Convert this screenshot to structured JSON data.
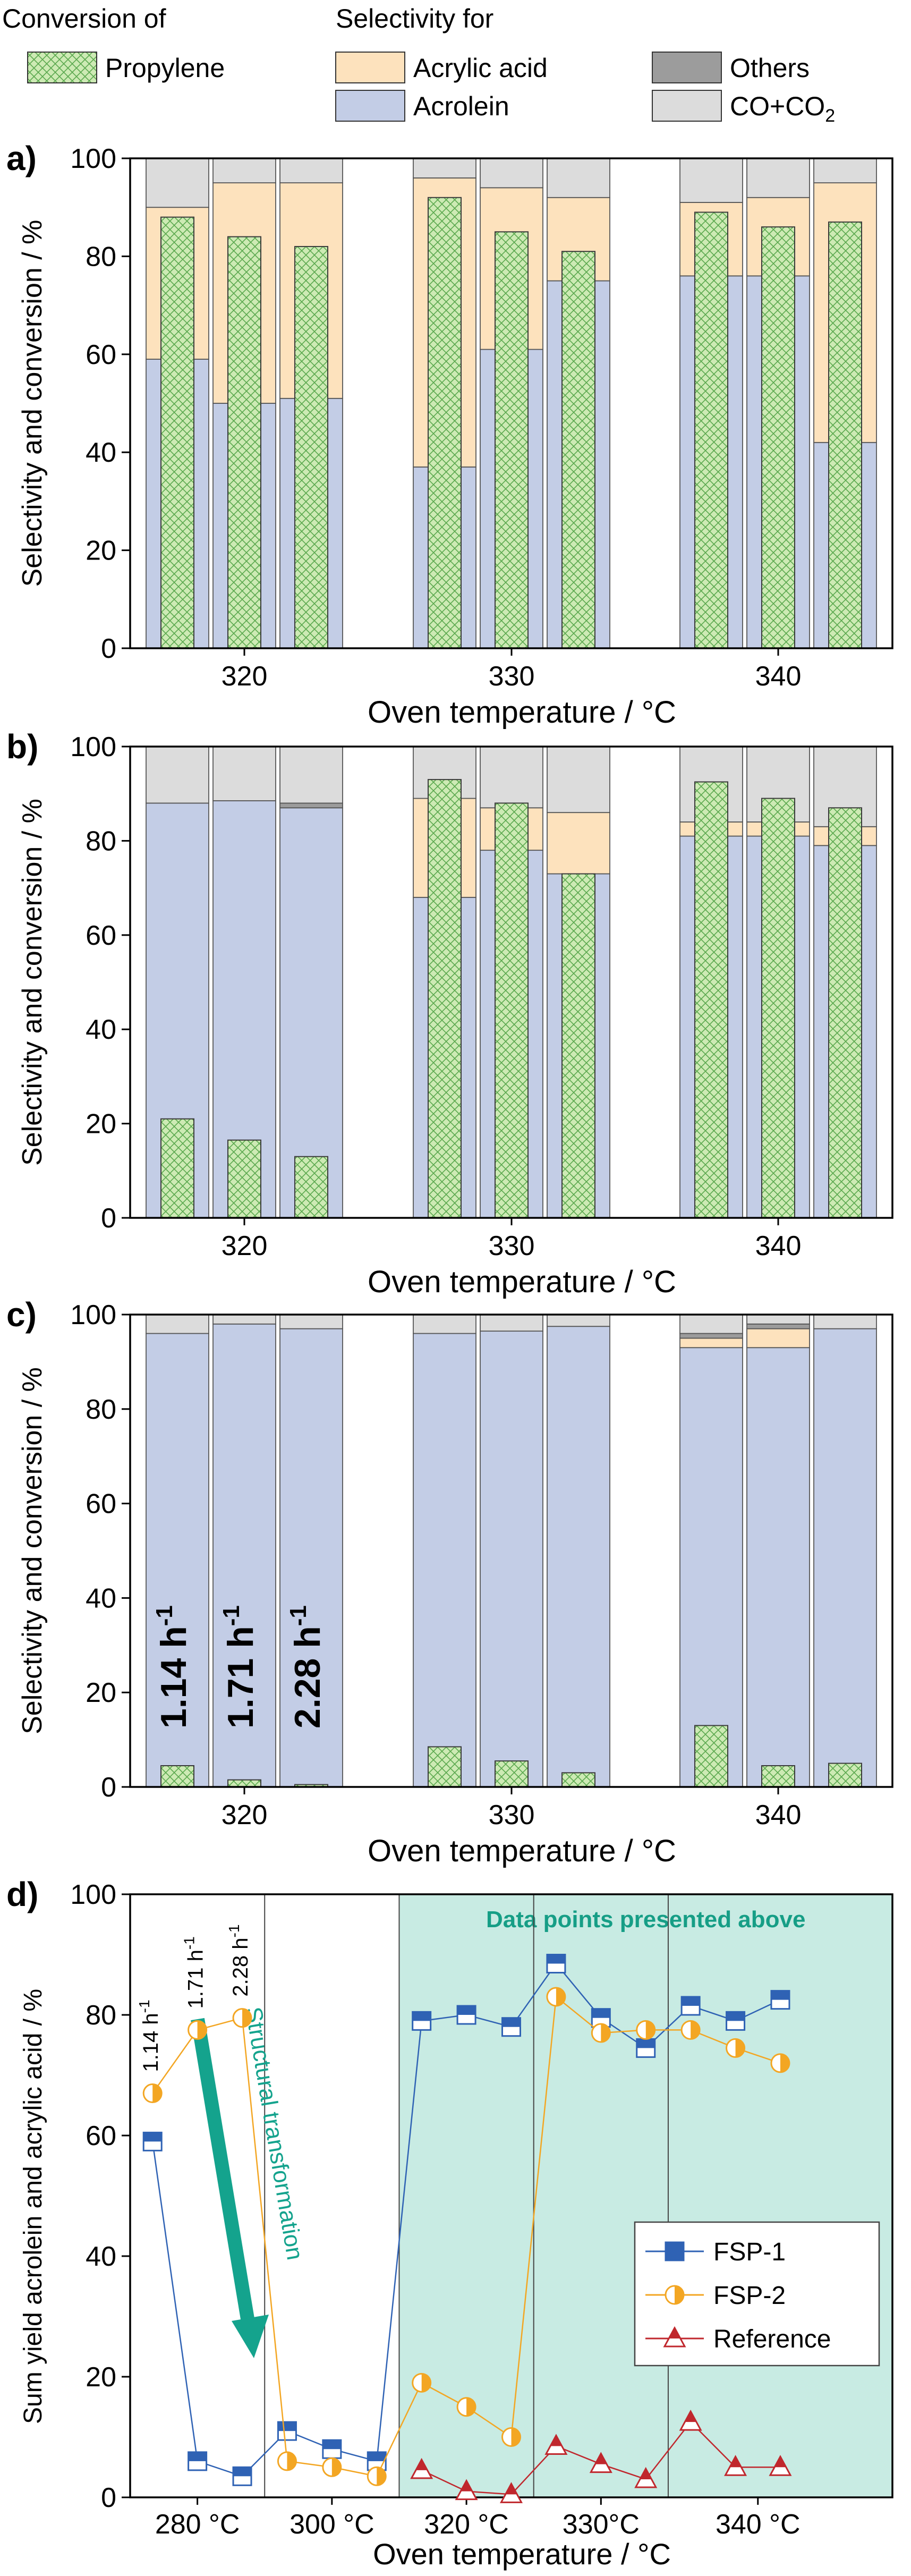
{
  "legend": {
    "conversion_header": "Conversion of",
    "selectivity_header": "Selectivity for",
    "items": [
      {
        "key": "propylene",
        "label": "Propylene",
        "fill": "#cdeab4",
        "pattern": true
      },
      {
        "key": "acrylic",
        "label": "Acrylic acid",
        "fill": "#fde2bd"
      },
      {
        "key": "others",
        "label": "Others",
        "fill": "#9c9c9c"
      },
      {
        "key": "acrolein",
        "label": "Acrolein",
        "fill": "#c3cde6"
      },
      {
        "key": "cox",
        "label": "CO+CO",
        "sub": "2",
        "fill": "#dcdcdc"
      }
    ]
  },
  "colors": {
    "acrolein": "#c3cde6",
    "acrylic": "#fde2bd",
    "others": "#9c9c9c",
    "cox": "#dcdcdc",
    "propylene": "#cdeab4",
    "hatch": "#5aa84e",
    "fsp1": "#2f62b4",
    "fsp2": "#f3a623",
    "reference": "#c0272d",
    "shade": "#c8ebe3",
    "arrow": "#14a38d"
  },
  "chart_data": [
    {
      "panel": "a)",
      "type": "bar",
      "stacked": true,
      "xlabel": "Oven temperature / °C",
      "ylabel": "Selectivity and conversion / %",
      "ylim": [
        0,
        100
      ],
      "yticks": [
        0,
        20,
        40,
        60,
        80,
        100
      ],
      "groups": [
        {
          "label": "320",
          "bars": [
            {
              "acrolein": 59,
              "acrylic": 31,
              "others": 0,
              "cox": 10,
              "conversion": 88
            },
            {
              "acrolein": 50,
              "acrylic": 45,
              "others": 0,
              "cox": 5,
              "conversion": 84
            },
            {
              "acrolein": 51,
              "acrylic": 44,
              "others": 0,
              "cox": 5,
              "conversion": 82
            }
          ]
        },
        {
          "label": "330",
          "bars": [
            {
              "acrolein": 37,
              "acrylic": 59,
              "others": 0,
              "cox": 4,
              "conversion": 92
            },
            {
              "acrolein": 61,
              "acrylic": 33,
              "others": 0,
              "cox": 6,
              "conversion": 85
            },
            {
              "acrolein": 75,
              "acrylic": 17,
              "others": 0,
              "cox": 8,
              "conversion": 81
            }
          ]
        },
        {
          "label": "340",
          "bars": [
            {
              "acrolein": 76,
              "acrylic": 15,
              "others": 0,
              "cox": 9,
              "conversion": 89
            },
            {
              "acrolein": 76,
              "acrylic": 16,
              "others": 0,
              "cox": 8,
              "conversion": 86
            },
            {
              "acrolein": 42,
              "acrylic": 53,
              "others": 0,
              "cox": 5,
              "conversion": 87
            }
          ]
        }
      ]
    },
    {
      "panel": "b)",
      "type": "bar",
      "stacked": true,
      "xlabel": "Oven temperature / °C",
      "ylabel": "Selectivity and conversion / %",
      "ylim": [
        0,
        100
      ],
      "yticks": [
        0,
        20,
        40,
        60,
        80,
        100
      ],
      "groups": [
        {
          "label": "320",
          "bars": [
            {
              "acrolein": 88,
              "acrylic": 0,
              "others": 0,
              "cox": 12,
              "conversion": 21
            },
            {
              "acrolein": 88.5,
              "acrylic": 0,
              "others": 0,
              "cox": 11.5,
              "conversion": 16.5
            },
            {
              "acrolein": 87,
              "acrylic": 0,
              "others": 1,
              "cox": 12,
              "conversion": 13
            }
          ]
        },
        {
          "label": "330",
          "bars": [
            {
              "acrolein": 68,
              "acrylic": 21,
              "others": 0,
              "cox": 11,
              "conversion": 93
            },
            {
              "acrolein": 78,
              "acrylic": 9,
              "others": 0,
              "cox": 13,
              "conversion": 88
            },
            {
              "acrolein": 73,
              "acrylic": 13,
              "others": 0,
              "cox": 14,
              "conversion": 73
            }
          ]
        },
        {
          "label": "340",
          "bars": [
            {
              "acrolein": 81,
              "acrylic": 3,
              "others": 0,
              "cox": 16,
              "conversion": 92.5
            },
            {
              "acrolein": 81,
              "acrylic": 3,
              "others": 0,
              "cox": 16,
              "conversion": 89
            },
            {
              "acrolein": 79,
              "acrylic": 4,
              "others": 0,
              "cox": 17,
              "conversion": 87
            }
          ]
        }
      ]
    },
    {
      "panel": "c)",
      "type": "bar",
      "stacked": true,
      "xlabel": "Oven temperature / °C",
      "ylabel": "Selectivity and conversion / %",
      "ylim": [
        0,
        100
      ],
      "yticks": [
        0,
        20,
        40,
        60,
        80,
        100
      ],
      "whsv_labels": [
        "1.14 h",
        "1.71 h",
        "2.28 h"
      ],
      "whsv_sup": "-1",
      "groups": [
        {
          "label": "320",
          "bars": [
            {
              "acrolein": 96,
              "acrylic": 0,
              "others": 0,
              "cox": 4,
              "conversion": 4.5
            },
            {
              "acrolein": 98,
              "acrylic": 0,
              "others": 0,
              "cox": 2,
              "conversion": 1.5
            },
            {
              "acrolein": 97,
              "acrylic": 0,
              "others": 0,
              "cox": 3,
              "conversion": 0.5
            }
          ]
        },
        {
          "label": "330",
          "bars": [
            {
              "acrolein": 96,
              "acrylic": 0,
              "others": 0,
              "cox": 4,
              "conversion": 8.5
            },
            {
              "acrolein": 96.5,
              "acrylic": 0,
              "others": 0,
              "cox": 3.5,
              "conversion": 5.5
            },
            {
              "acrolein": 97.5,
              "acrylic": 0,
              "others": 0,
              "cox": 2.5,
              "conversion": 3
            }
          ]
        },
        {
          "label": "340",
          "bars": [
            {
              "acrolein": 93,
              "acrylic": 2,
              "others": 1,
              "cox": 4,
              "conversion": 13
            },
            {
              "acrolein": 93,
              "acrylic": 4,
              "others": 1,
              "cox": 2,
              "conversion": 4.5
            },
            {
              "acrolein": 97,
              "acrylic": 0,
              "others": 0,
              "cox": 3,
              "conversion": 5
            }
          ]
        }
      ]
    },
    {
      "panel": "d)",
      "type": "line",
      "xlabel": "Oven temperature / °C",
      "ylabel": "Sum yield acrolein and acrylic acid / %",
      "ylim": [
        0,
        100
      ],
      "yticks": [
        0,
        20,
        40,
        60,
        80,
        100
      ],
      "xlim": [
        0.5,
        17.5
      ],
      "xtick_positions": [
        2,
        5,
        8,
        11,
        14.5
      ],
      "xtick_labels": [
        "280 °C",
        "300 °C",
        "320 °C",
        "330°C",
        "340 °C"
      ],
      "group_separators": [
        3.5,
        6.5,
        9.5,
        12.5
      ],
      "shaded_range": [
        6.5,
        17.5
      ],
      "shaded_label": "Data points presented above",
      "whsv_labels": [
        "1.14 h",
        "1.71 h",
        "2.28 h"
      ],
      "whsv_sup": "-1",
      "whsv_x": [
        1,
        2,
        3
      ],
      "annotation": "Structural transformation",
      "series": [
        {
          "name": "FSP-1",
          "marker": "square",
          "x": [
            1,
            2,
            3,
            4,
            5,
            6,
            7,
            8,
            9,
            10,
            11,
            12,
            13,
            14,
            15,
            16
          ],
          "values": [
            59,
            6,
            3.5,
            11,
            8,
            6,
            79,
            80,
            78,
            88.5,
            79.5,
            74.5,
            81.5,
            79,
            82.5,
            null
          ]
        },
        {
          "name": "FSP-2",
          "marker": "circle",
          "x": [
            1,
            2,
            3,
            4,
            5,
            6,
            7,
            8,
            9,
            10,
            11,
            12,
            13,
            14,
            15,
            16
          ],
          "values": [
            67,
            77.5,
            79.5,
            6,
            5,
            3.5,
            19,
            15,
            10,
            83,
            77,
            77.5,
            77.5,
            74.5,
            72,
            null
          ]
        },
        {
          "name": "Reference",
          "marker": "triangle",
          "x": [
            7,
            8,
            9,
            10,
            11,
            12,
            13,
            14,
            15
          ],
          "values": [
            4.5,
            1,
            0.5,
            8.5,
            5.5,
            3,
            12.5,
            5,
            5
          ]
        }
      ]
    }
  ]
}
